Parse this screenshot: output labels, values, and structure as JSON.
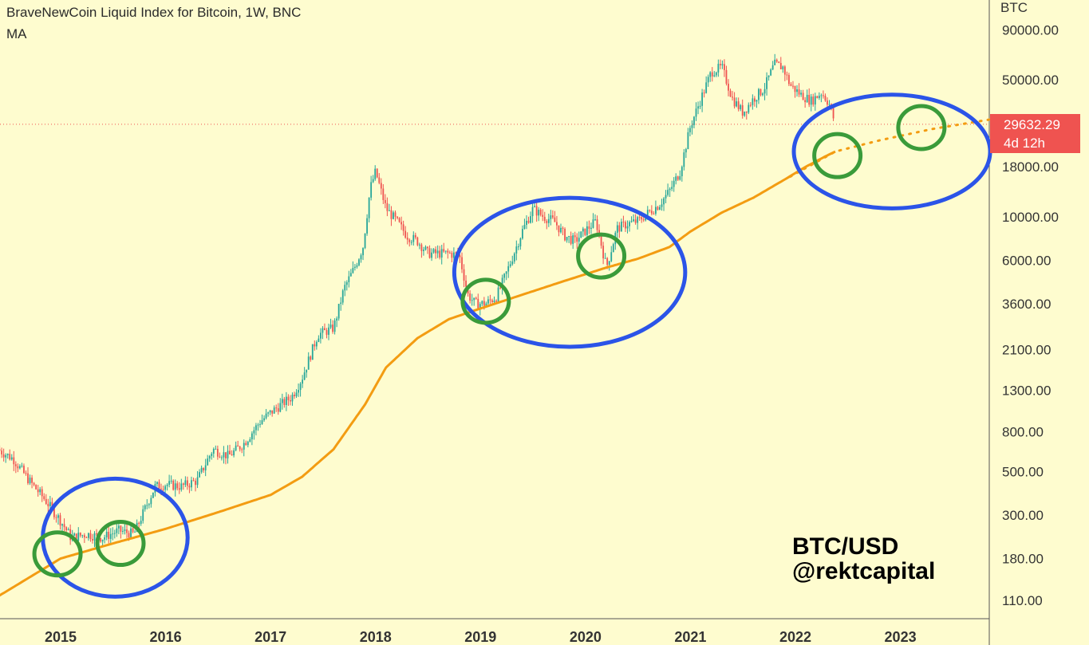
{
  "chart_data": {
    "type": "line",
    "title": "BraveNewCoin Liquid Index for Bitcoin, 1W, BNC",
    "indicator_label": "MA",
    "currency_label": "BTC",
    "scale": "log",
    "ylim": [
      90,
      110000
    ],
    "y_ticks": [
      {
        "value": 90000,
        "label": "90000.00"
      },
      {
        "value": 50000,
        "label": "50000.00"
      },
      {
        "value": 18000,
        "label": "18000.00"
      },
      {
        "value": 10000,
        "label": "10000.00"
      },
      {
        "value": 6000,
        "label": "6000.00"
      },
      {
        "value": 3600,
        "label": "3600.00"
      },
      {
        "value": 2100,
        "label": "2100.00"
      },
      {
        "value": 1300,
        "label": "1300.00"
      },
      {
        "value": 800,
        "label": "800.00"
      },
      {
        "value": 500,
        "label": "500.00"
      },
      {
        "value": 300,
        "label": "300.00"
      },
      {
        "value": 180,
        "label": "180.00"
      },
      {
        "value": 110,
        "label": "110.00"
      }
    ],
    "x_ticks": [
      {
        "value": 2015.0,
        "label": "2015"
      },
      {
        "value": 2016.0,
        "label": "2016"
      },
      {
        "value": 2017.0,
        "label": "2017"
      },
      {
        "value": 2018.0,
        "label": "2018"
      },
      {
        "value": 2019.0,
        "label": "2019"
      },
      {
        "value": 2020.0,
        "label": "2020"
      },
      {
        "value": 2021.0,
        "label": "2021"
      },
      {
        "value": 2022.0,
        "label": "2022"
      },
      {
        "value": 2023.0,
        "label": "2023"
      }
    ],
    "xlim": [
      2014.4,
      2023.88
    ],
    "price_series": {
      "x": [
        2014.4,
        2014.55,
        2014.7,
        2014.85,
        2015.0,
        2015.1,
        2015.25,
        2015.4,
        2015.55,
        2015.7,
        2015.8,
        2015.9,
        2016.0,
        2016.15,
        2016.3,
        2016.45,
        2016.6,
        2016.75,
        2016.9,
        2017.0,
        2017.1,
        2017.2,
        2017.3,
        2017.45,
        2017.6,
        2017.7,
        2017.8,
        2017.88,
        2017.95,
        2018.0,
        2018.1,
        2018.2,
        2018.3,
        2018.4,
        2018.5,
        2018.6,
        2018.7,
        2018.8,
        2018.88,
        2018.95,
        2019.05,
        2019.15,
        2019.25,
        2019.4,
        2019.5,
        2019.6,
        2019.7,
        2019.8,
        2019.9,
        2020.0,
        2020.1,
        2020.2,
        2020.3,
        2020.4,
        2020.5,
        2020.6,
        2020.7,
        2020.8,
        2020.9,
        2021.0,
        2021.1,
        2021.2,
        2021.3,
        2021.4,
        2021.5,
        2021.6,
        2021.7,
        2021.8,
        2021.88,
        2021.95,
        2022.05,
        2022.15,
        2022.25,
        2022.32,
        2022.38
      ],
      "y": [
        650,
        580,
        450,
        360,
        280,
        230,
        240,
        230,
        250,
        240,
        320,
        420,
        430,
        420,
        450,
        650,
        600,
        700,
        900,
        1000,
        1100,
        1200,
        1500,
        2500,
        2700,
        4300,
        5500,
        7000,
        14000,
        17000,
        11000,
        9500,
        8000,
        7500,
        6500,
        6500,
        6500,
        6300,
        4000,
        3600,
        3600,
        3900,
        5200,
        8500,
        11000,
        10000,
        9500,
        8000,
        7500,
        8500,
        9500,
        5500,
        8700,
        9200,
        9500,
        10500,
        11500,
        13500,
        17000,
        29000,
        40000,
        55000,
        58000,
        40000,
        34000,
        40000,
        45000,
        60000,
        58000,
        47000,
        42000,
        39000,
        43000,
        38000,
        29632
      ]
    },
    "ma_series": {
      "x": [
        2014.4,
        2015.0,
        2015.5,
        2016.0,
        2016.5,
        2017.0,
        2017.3,
        2017.6,
        2017.9,
        2018.1,
        2018.4,
        2018.7,
        2019.0,
        2019.4,
        2019.8,
        2020.2,
        2020.5,
        2020.8,
        2021.0,
        2021.3,
        2021.6,
        2021.9,
        2022.1,
        2022.3,
        2022.38
      ],
      "y": [
        115,
        180,
        215,
        255,
        310,
        380,
        470,
        650,
        1100,
        1700,
        2400,
        3000,
        3400,
        4000,
        4700,
        5500,
        6100,
        7000,
        8400,
        10500,
        12500,
        15500,
        18000,
        20500,
        21500
      ]
    },
    "ma_projection": {
      "x": [
        2021.95,
        2022.38,
        2022.8,
        2023.3,
        2023.88
      ],
      "y": [
        16000,
        21500,
        24500,
        28000,
        31500
      ]
    },
    "last_price": {
      "value": 29632.29,
      "label": "29632.29",
      "countdown": "4d 12h"
    },
    "annotations": {
      "blue_ellipses": [
        {
          "xcenter": 2015.52,
          "ycenter": 230,
          "xspan": 1.38,
          "yfactor": 2.0
        },
        {
          "xcenter": 2019.85,
          "ycenter": 5200,
          "xspan": 2.2,
          "yfactor": 2.4
        },
        {
          "xcenter": 2022.92,
          "ycenter": 21500,
          "xspan": 1.87,
          "yfactor": 1.95
        }
      ],
      "green_circles": [
        {
          "xcenter": 2014.97,
          "ycenter": 190
        },
        {
          "xcenter": 2015.57,
          "ycenter": 215
        },
        {
          "xcenter": 2019.05,
          "ycenter": 3700
        },
        {
          "xcenter": 2020.15,
          "ycenter": 6300
        },
        {
          "xcenter": 2022.4,
          "ycenter": 20500
        },
        {
          "xcenter": 2023.2,
          "ycenter": 28500
        }
      ]
    },
    "watermark": [
      "BTC/USD",
      "@rektcapital"
    ],
    "colors": {
      "background": "#fefccf",
      "up_candle": "#26a69a",
      "down_candle": "#ef5350",
      "ma": "#f39c12",
      "blue_annotation": "#2b54e8",
      "green_annotation": "#3a9b3a",
      "axis_text": "#333333",
      "price_badge": "#ef5350"
    },
    "grid": false,
    "legend": "top-left"
  }
}
